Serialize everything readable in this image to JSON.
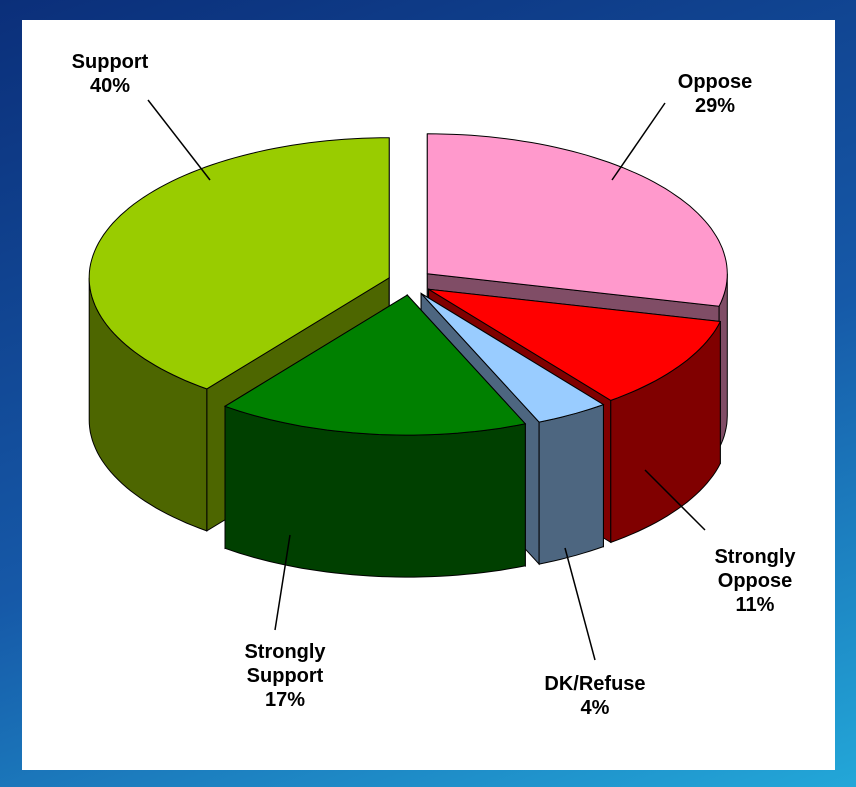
{
  "chart_data": {
    "type": "pie",
    "categories": [
      "Oppose",
      "Strongly Oppose",
      "DK/Refuse",
      "Strongly Support",
      "Support"
    ],
    "values": [
      29,
      11,
      4,
      17,
      40
    ],
    "value_labels": [
      "29%",
      "11%",
      "4%",
      "17%",
      "40%"
    ],
    "colors": [
      "#ff99cc",
      "#ff0000",
      "#99ccff",
      "#008000",
      "#99cc00"
    ]
  }
}
